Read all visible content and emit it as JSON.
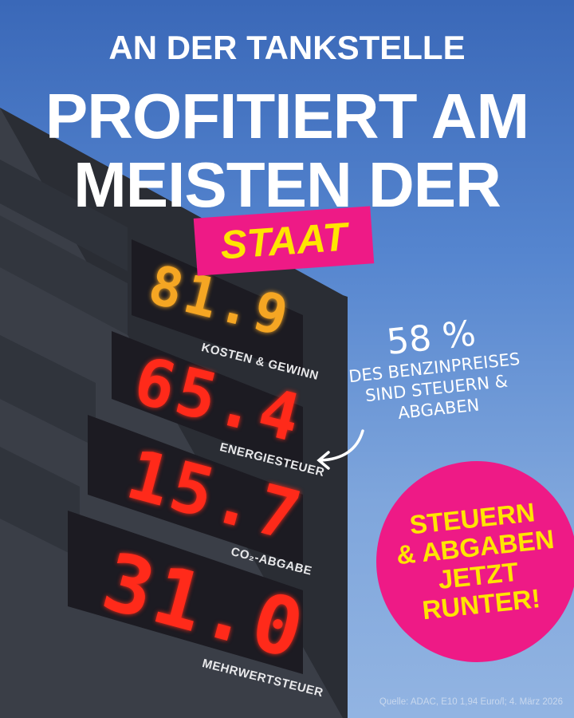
{
  "headline": {
    "line1": "AN DER TANKSTELLE",
    "line2": "PROFITIERT AM",
    "line3": "MEISTEN DER",
    "highlight": "STAAT"
  },
  "price_board": [
    {
      "value": "81.9",
      "label": "KOSTEN & GEWINN",
      "color": "#f5a623"
    },
    {
      "value": "65.4",
      "label": "ENERGIESTEUER",
      "color": "#ff2a1a"
    },
    {
      "value": "15.7",
      "label": "CO₂-ABGABE",
      "color": "#ff2a1a"
    },
    {
      "value": "31.0",
      "label": "MEHRWERTSTEUER",
      "color": "#ff2a1a"
    }
  ],
  "annotation": {
    "percent": "58 %",
    "line1": "DES BENZINPREISES",
    "line2": "SIND STEUERN &",
    "line3": "ABGABEN"
  },
  "cta": {
    "line1": "STEUERN",
    "line2": "& ABGABEN",
    "line3": "JETZT",
    "line4": "RUNTER!"
  },
  "source": "Quelle: ADAC, E10 1,94 Euro/l; 4. März 2026",
  "colors": {
    "pink": "#ee1a86",
    "yellow": "#ffe500",
    "sky": "#5585cf"
  }
}
